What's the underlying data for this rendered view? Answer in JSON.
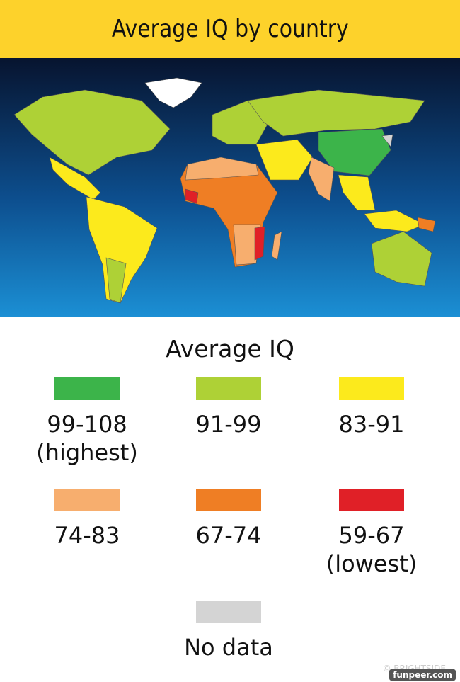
{
  "header": {
    "title": "Average IQ by country"
  },
  "legend": {
    "title": "Average IQ",
    "items": [
      {
        "range": "99-108",
        "note": "(highest)",
        "color": "#3cb44a"
      },
      {
        "range": "91-99",
        "color": "#aed136"
      },
      {
        "range": "83-91",
        "color": "#fcea1c"
      },
      {
        "range": "74-83",
        "color": "#f7ae6e"
      },
      {
        "range": "67-74",
        "color": "#ef7e24"
      },
      {
        "range": "59-67",
        "note": "(lowest)",
        "color": "#e02027"
      },
      {
        "range": "No data",
        "color": "#d4d4d4"
      }
    ]
  },
  "watermarks": {
    "brand": "© BRIGHTSIDE",
    "site": "funpeer.com"
  }
}
